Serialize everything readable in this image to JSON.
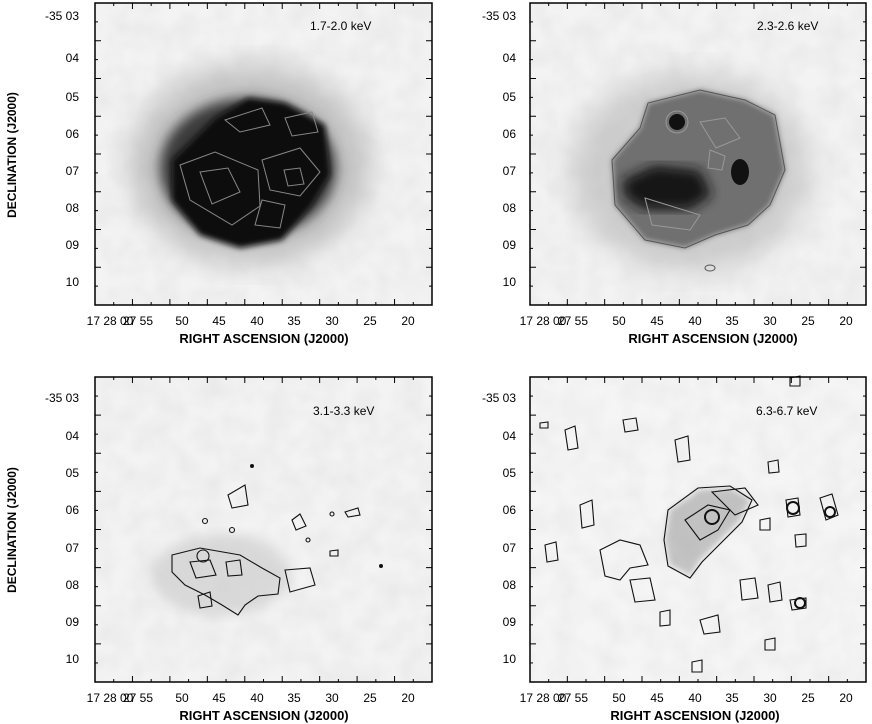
{
  "figure": {
    "panels": [
      {
        "id": "p1",
        "energy_label": "1.7-2.0 keV",
        "y_ticks": [
          "-35 03",
          "04",
          "05",
          "06",
          "07",
          "08",
          "09",
          "10"
        ],
        "x_ticks": [
          "17 28 00",
          "27 55",
          "50",
          "45",
          "40",
          "35",
          "30",
          "25",
          "20"
        ],
        "ylabel": "DECLINATION (J2000)",
        "xlabel": "RIGHT ASCENSION (J2000)",
        "emission": "strong"
      },
      {
        "id": "p2",
        "energy_label": "2.3-2.6 keV",
        "y_ticks": [
          "-35 03",
          "04",
          "05",
          "06",
          "07",
          "08",
          "09",
          "10"
        ],
        "x_ticks": [
          "17 28 00",
          "27 55",
          "50",
          "45",
          "40",
          "35",
          "30",
          "25",
          "20"
        ],
        "ylabel": "",
        "xlabel": "RIGHT ASCENSION (J2000)",
        "emission": "moderate"
      },
      {
        "id": "p3",
        "energy_label": "3.1-3.3 keV",
        "y_ticks": [
          "-35 03",
          "04",
          "05",
          "06",
          "07",
          "08",
          "09",
          "10"
        ],
        "x_ticks": [
          "17 28 00",
          "27 55",
          "50",
          "45",
          "40",
          "35",
          "30",
          "25",
          "20"
        ],
        "ylabel": "DECLINATION (J2000)",
        "xlabel": "RIGHT ASCENSION (J2000)",
        "emission": "faint"
      },
      {
        "id": "p4",
        "energy_label": "6.3-6.7 keV",
        "y_ticks": [
          "-35 03",
          "04",
          "05",
          "06",
          "07",
          "08",
          "09",
          "10"
        ],
        "x_ticks": [
          "17 28 00",
          "27 55",
          "50",
          "45",
          "40",
          "35",
          "30",
          "25",
          "20"
        ],
        "ylabel": "",
        "xlabel": "RIGHT ASCENSION (J2000)",
        "emission": "patchy"
      }
    ],
    "colors": {
      "frame": "#000000",
      "background": "#ffffff",
      "source_dark": "#111111"
    }
  }
}
